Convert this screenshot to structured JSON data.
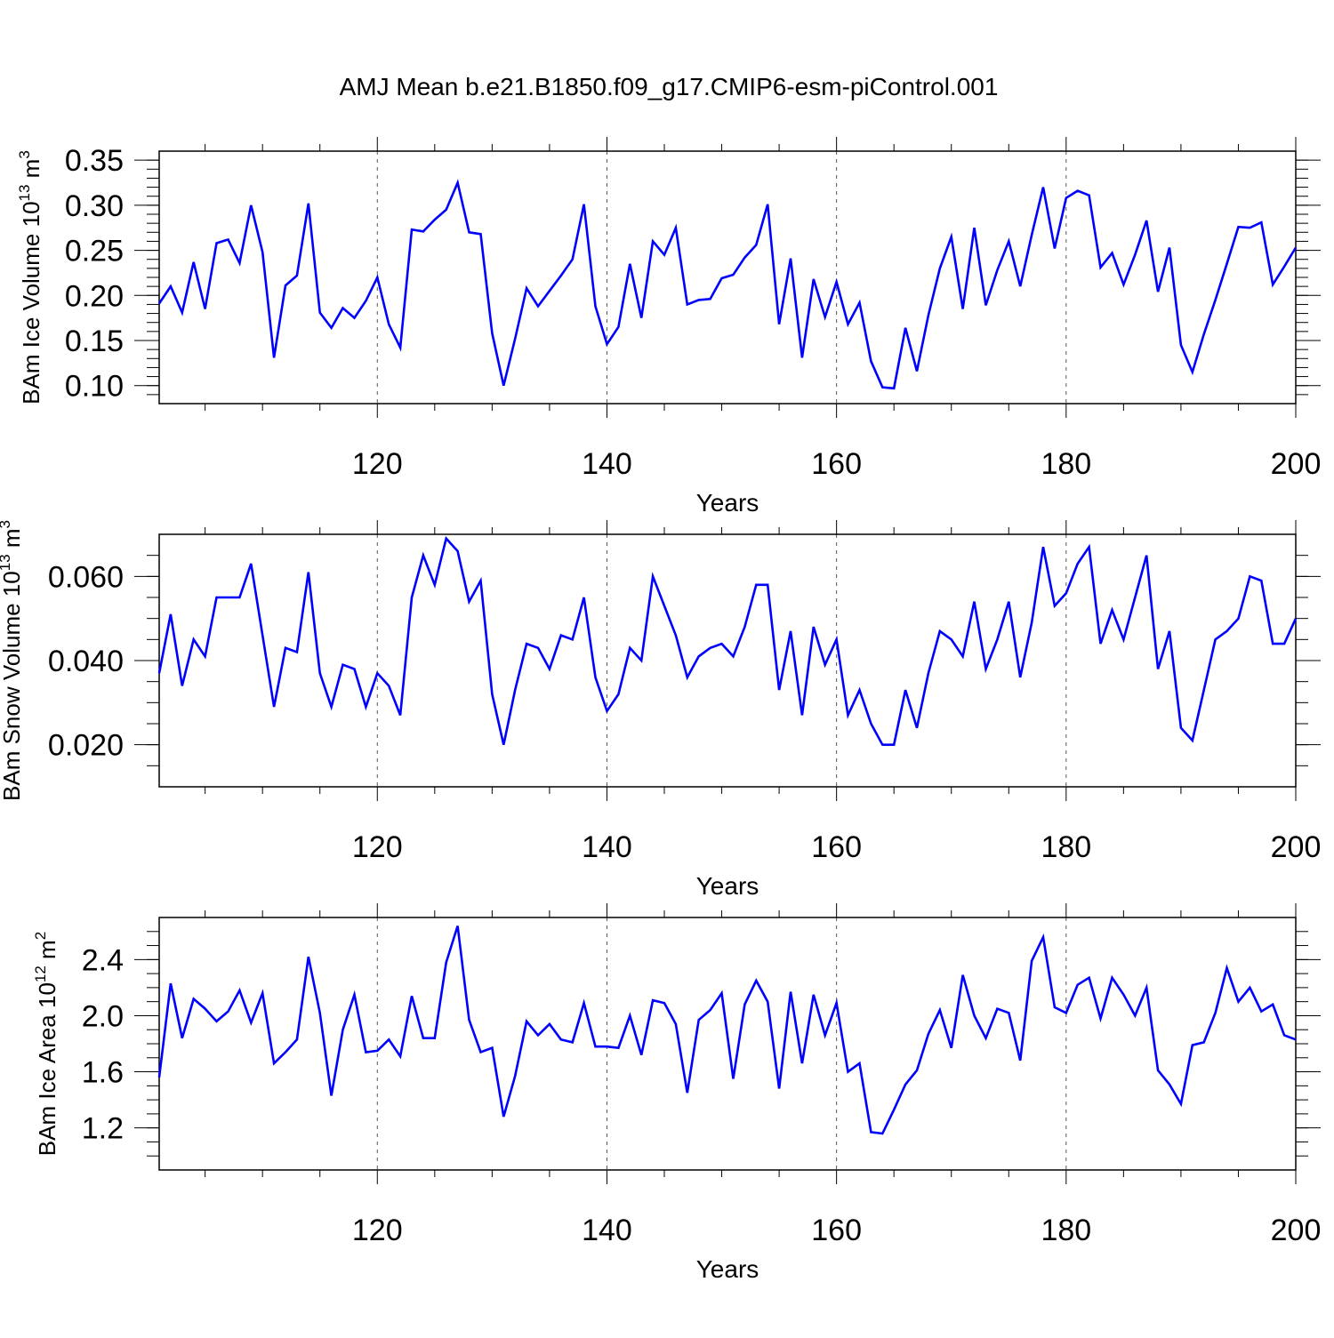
{
  "title": "AMJ Mean b.e21.B1850.f09_g17.CMIP6-esm-piControl.001",
  "colors": {
    "line": "#0000ff",
    "axis": "#000000",
    "grid": "#555555"
  },
  "chart_data": [
    {
      "type": "line",
      "ylabel": {
        "main": "BAm Ice Volume 10",
        "exp": "13",
        "unit": " m",
        "unitExp": "3"
      },
      "xlabel": "Years",
      "xlim": [
        101,
        200
      ],
      "ylim": [
        0.08,
        0.36
      ],
      "xticks": [
        "120",
        "140",
        "160",
        "180",
        "200"
      ],
      "yticks": [
        {
          "v": 0.35,
          "t": "0.35"
        },
        {
          "v": 0.3,
          "t": "0.30"
        },
        {
          "v": 0.25,
          "t": "0.25"
        },
        {
          "v": 0.2,
          "t": "0.20"
        },
        {
          "v": 0.15,
          "t": "0.15"
        },
        {
          "v": 0.1,
          "t": "0.10"
        }
      ],
      "yminor": 0.01,
      "x_start": 101,
      "values": [
        0.191,
        0.21,
        0.181,
        0.237,
        0.185,
        0.258,
        0.262,
        0.236,
        0.3,
        0.248,
        0.131,
        0.211,
        0.222,
        0.302,
        0.181,
        0.164,
        0.186,
        0.175,
        0.194,
        0.22,
        0.168,
        0.142,
        0.273,
        0.271,
        0.284,
        0.295,
        0.325,
        0.27,
        0.268,
        0.158,
        0.1,
        0.152,
        0.208,
        0.188,
        0.205,
        0.222,
        0.24,
        0.301,
        0.188,
        0.146,
        0.165,
        0.235,
        0.175,
        0.26,
        0.245,
        0.275,
        0.19,
        0.195,
        0.196,
        0.219,
        0.223,
        0.242,
        0.256,
        0.301,
        0.168,
        0.241,
        0.131,
        0.218,
        0.176,
        0.215,
        0.168,
        0.192,
        0.127,
        0.098,
        0.097,
        0.164,
        0.116,
        0.178,
        0.23,
        0.265,
        0.185,
        0.275,
        0.189,
        0.228,
        0.26,
        0.21,
        0.267,
        0.32,
        0.252,
        0.308,
        0.316,
        0.311,
        0.231,
        0.247,
        0.212,
        0.245,
        0.283,
        0.204,
        0.253,
        0.145,
        0.115,
        0.157,
        0.195,
        0.235,
        0.276,
        0.275,
        0.281,
        0.212,
        0.232,
        0.253
      ]
    },
    {
      "type": "line",
      "ylabel": {
        "main": "BAm Snow Volume 10",
        "exp": "13",
        "unit": " m",
        "unitExp": "3"
      },
      "xlabel": "Years",
      "xlim": [
        101,
        200
      ],
      "ylim": [
        0.01,
        0.07
      ],
      "xticks": [
        "120",
        "140",
        "160",
        "180",
        "200"
      ],
      "yticks": [
        {
          "v": 0.06,
          "t": "0.060"
        },
        {
          "v": 0.04,
          "t": "0.040"
        },
        {
          "v": 0.02,
          "t": "0.020"
        }
      ],
      "yminor": 0.005,
      "x_start": 101,
      "values": [
        0.037,
        0.051,
        0.034,
        0.045,
        0.041,
        0.055,
        0.055,
        0.055,
        0.063,
        0.046,
        0.029,
        0.043,
        0.042,
        0.061,
        0.037,
        0.029,
        0.039,
        0.038,
        0.029,
        0.037,
        0.034,
        0.027,
        0.055,
        0.065,
        0.058,
        0.069,
        0.066,
        0.054,
        0.059,
        0.032,
        0.02,
        0.033,
        0.044,
        0.043,
        0.038,
        0.046,
        0.045,
        0.055,
        0.036,
        0.028,
        0.032,
        0.043,
        0.04,
        0.06,
        0.053,
        0.046,
        0.036,
        0.041,
        0.043,
        0.044,
        0.041,
        0.048,
        0.058,
        0.058,
        0.033,
        0.047,
        0.027,
        0.048,
        0.039,
        0.045,
        0.027,
        0.033,
        0.025,
        0.02,
        0.02,
        0.033,
        0.024,
        0.037,
        0.047,
        0.045,
        0.041,
        0.054,
        0.038,
        0.045,
        0.054,
        0.036,
        0.049,
        0.067,
        0.053,
        0.056,
        0.063,
        0.067,
        0.044,
        0.052,
        0.045,
        0.055,
        0.065,
        0.038,
        0.047,
        0.024,
        0.021,
        0.033,
        0.045,
        0.047,
        0.05,
        0.06,
        0.059,
        0.044,
        0.044,
        0.05
      ]
    },
    {
      "type": "line",
      "ylabel": {
        "main": "BAm Ice Area 10",
        "exp": "12",
        "unit": " m",
        "unitExp": "2"
      },
      "xlabel": "Years",
      "xlim": [
        101,
        200
      ],
      "ylim": [
        0.9,
        2.7
      ],
      "xticks": [
        "120",
        "140",
        "160",
        "180",
        "200"
      ],
      "yticks": [
        {
          "v": 2.4,
          "t": "2.4"
        },
        {
          "v": 2.0,
          "t": "2.0"
        },
        {
          "v": 1.6,
          "t": "1.6"
        },
        {
          "v": 1.2,
          "t": "1.2"
        }
      ],
      "yminor": 0.1,
      "x_start": 101,
      "values": [
        1.56,
        2.23,
        1.84,
        2.12,
        2.05,
        1.96,
        2.03,
        2.18,
        1.95,
        2.16,
        1.66,
        1.74,
        1.83,
        2.42,
        2.02,
        1.43,
        1.9,
        2.15,
        1.74,
        1.75,
        1.83,
        1.71,
        2.14,
        1.84,
        1.84,
        2.38,
        2.64,
        1.97,
        1.74,
        1.77,
        1.28,
        1.57,
        1.96,
        1.86,
        1.94,
        1.83,
        1.81,
        2.09,
        1.78,
        1.78,
        1.77,
        2.0,
        1.72,
        2.11,
        2.09,
        1.94,
        1.45,
        1.97,
        2.04,
        2.16,
        1.55,
        2.08,
        2.25,
        2.1,
        1.48,
        2.17,
        1.66,
        2.15,
        1.86,
        2.09,
        1.6,
        1.66,
        1.17,
        1.16,
        1.33,
        1.51,
        1.61,
        1.87,
        2.04,
        1.77,
        2.29,
        2.0,
        1.84,
        2.05,
        2.02,
        1.68,
        2.39,
        2.56,
        2.06,
        2.02,
        2.22,
        2.27,
        1.98,
        2.27,
        2.15,
        2.0,
        2.2,
        1.61,
        1.51,
        1.37,
        1.79,
        1.81,
        2.02,
        2.34,
        2.1,
        2.2,
        2.03,
        2.08,
        1.86,
        1.83
      ]
    }
  ]
}
